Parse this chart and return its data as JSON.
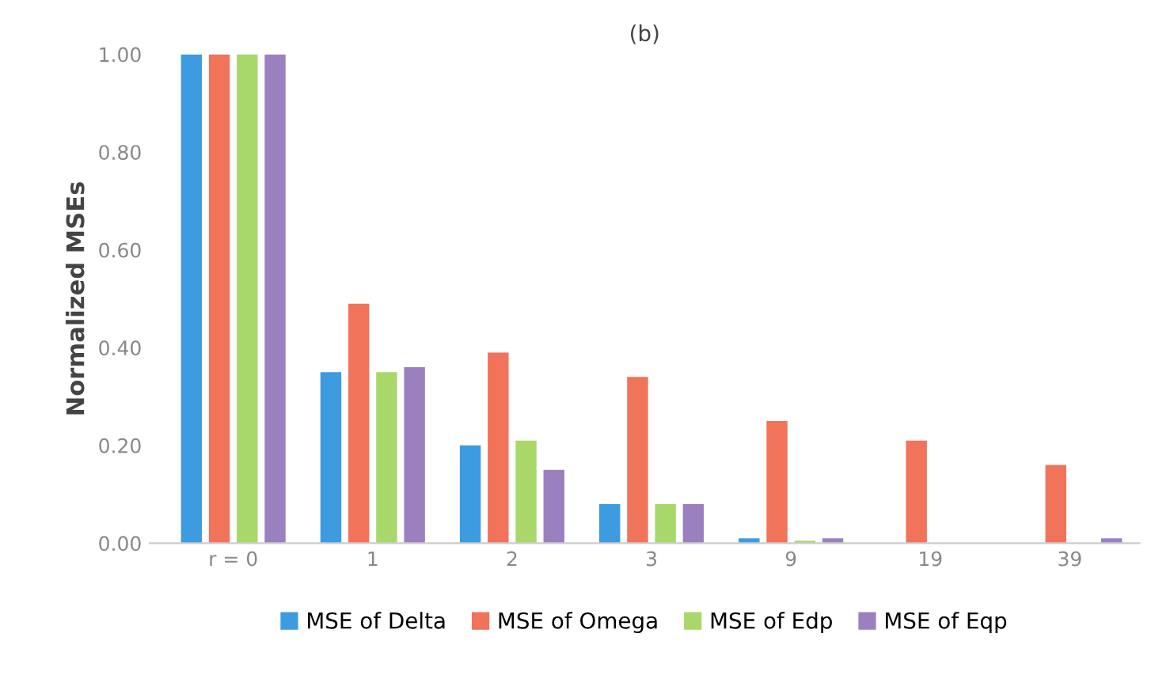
{
  "chart_data": {
    "type": "bar",
    "title": "(b)",
    "ylabel": "Normalized MSEs",
    "categories": [
      "r = 0",
      "1",
      "2",
      "3",
      "9",
      "19",
      "39"
    ],
    "series": [
      {
        "name": "MSE of Delta",
        "color": "#3d9be0",
        "values": [
          1.0,
          0.35,
          0.2,
          0.08,
          0.01,
          0,
          0
        ]
      },
      {
        "name": "MSE of Omega",
        "color": "#f0735a",
        "values": [
          1.0,
          0.49,
          0.39,
          0.34,
          0.25,
          0.21,
          0.16
        ]
      },
      {
        "name": "MSE of Edp",
        "color": "#a8d86a",
        "values": [
          1.0,
          0.35,
          0.21,
          0.08,
          0.005,
          0,
          0
        ]
      },
      {
        "name": "MSE of Eqp",
        "color": "#9b80c0",
        "values": [
          1.0,
          0.36,
          0.15,
          0.08,
          0.01,
          0,
          0.01
        ]
      }
    ],
    "ylim": [
      0,
      1.0
    ],
    "yticks": [
      {
        "value": 0,
        "label": "0.00"
      },
      {
        "value": 0.2,
        "label": "0.20"
      },
      {
        "value": 0.4,
        "label": "0.40"
      },
      {
        "value": 0.6,
        "label": "0.60"
      },
      {
        "value": 0.8,
        "label": "0.80"
      },
      {
        "value": 1.0,
        "label": "1.00"
      }
    ],
    "grid": false,
    "legend": "bottom"
  }
}
